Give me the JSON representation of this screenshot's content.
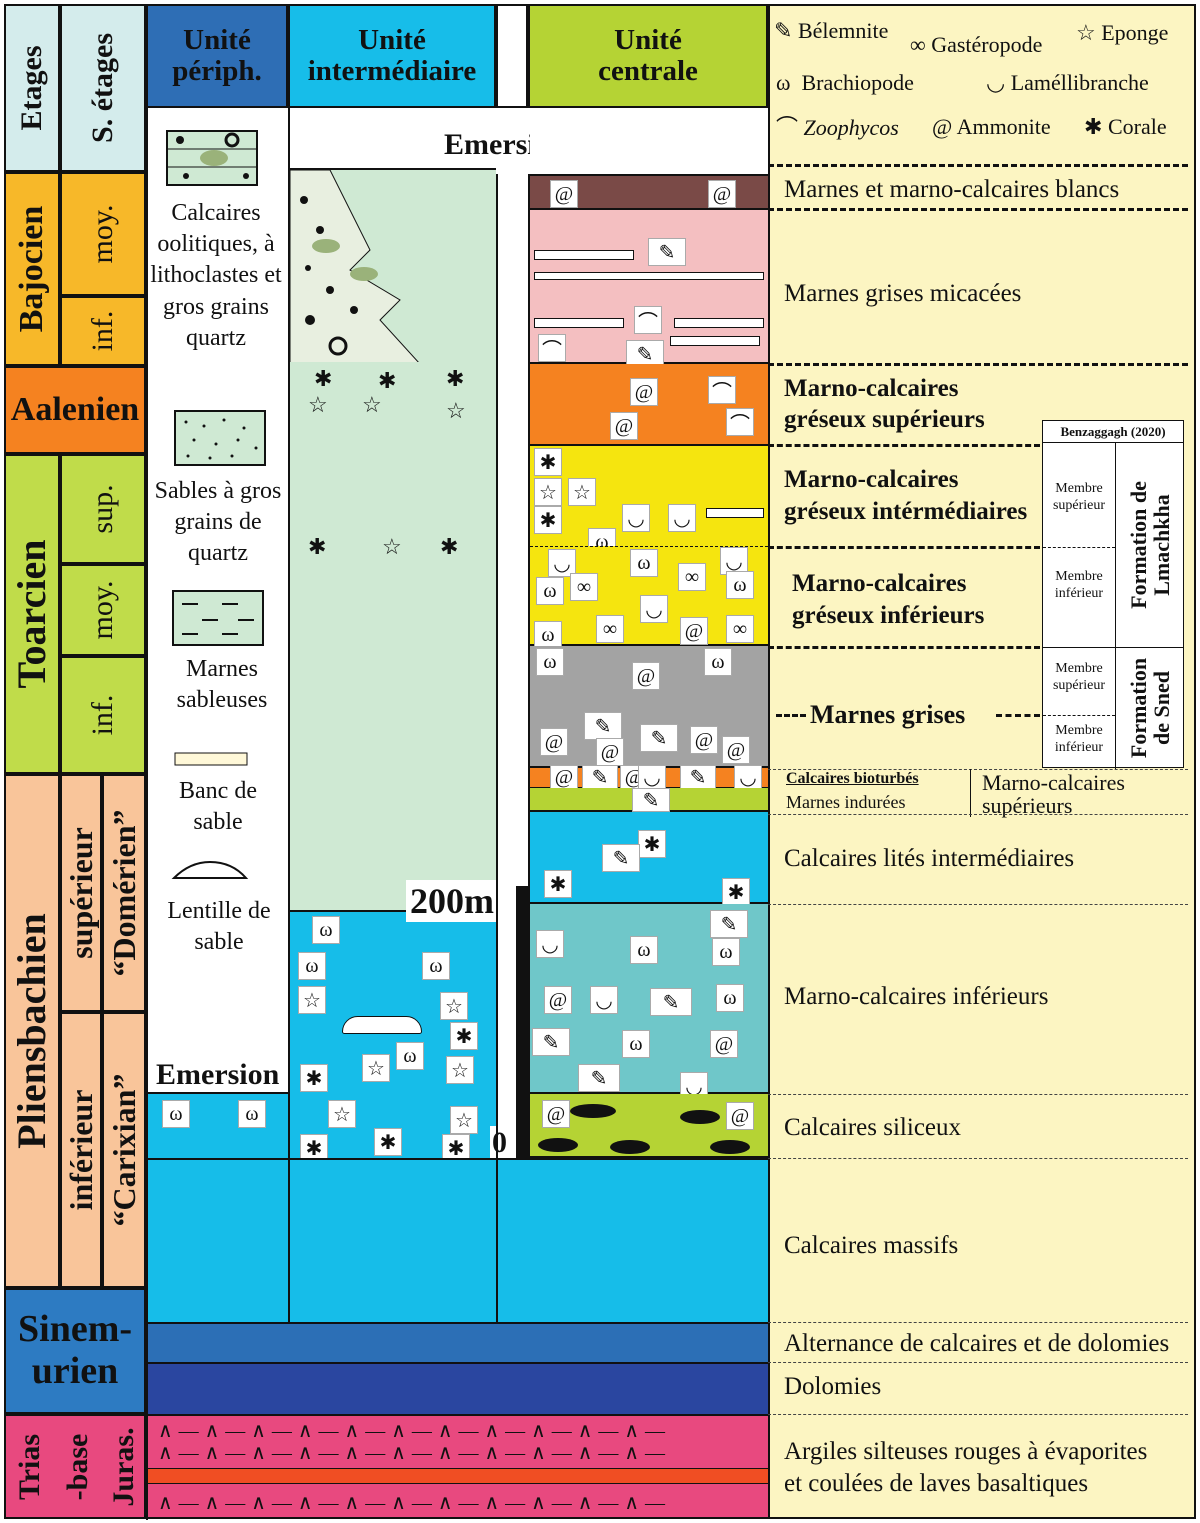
{
  "header": {
    "etages": "Etages",
    "s_etages": "S. étages",
    "unite_periph": "Unité périph.",
    "unite_intermediaire": "Unité intermédiaire",
    "unite_centrale": "Unité centrale"
  },
  "legend_fossils": {
    "belemnite": "Bélemnite",
    "gasteropode": "Gastéropode",
    "eponge": "Eponge",
    "brachiopode": "Brachiopode",
    "lamellibranche": "Laméllibranche",
    "zoophycos": "Zoophycos",
    "ammonite": "Ammonite",
    "corale": "Corale"
  },
  "stages": {
    "bajocien": "Bajocien",
    "aalenien": "Aalenien",
    "toarcien": "Toarcien",
    "pliensbachien": "Pliensbachien",
    "sinemurien": "Sinem-urien",
    "sinem_line1": "Sinem-",
    "sinem_line2": "urien",
    "trias_line1": "Trias",
    "trias_line2": "-base",
    "trias_line3": "Juras."
  },
  "substages": {
    "moy_baj": "moy.",
    "inf_baj": "inf.",
    "sup_toa": "sup.",
    "moy_toa": "moy.",
    "inf_toa": "inf.",
    "superieur": "supérieur",
    "domerien": "“Domérien”",
    "inferieur": "inférieur",
    "carixian": "“Carixian”"
  },
  "lithology_legend": {
    "calcaires_oolitiques": "Calcaires oolitiques, à lithoclastes et gros grains quartz",
    "sables": "Sables à gros grains de quartz",
    "marnes_sableuses": "Marnes sableuses",
    "banc_sable": "Banc de sable",
    "lentille_sable": "Lentille de sable"
  },
  "labels": {
    "emersion_top": "Emersion",
    "emersion_left": "Emersion",
    "scale_200": "200m",
    "scale_0": "0"
  },
  "descriptions": {
    "d1": "Marnes et marno-calcaires blancs",
    "d2": "Marnes grises micacées",
    "d3a": "Marno-calcaires",
    "d3b": "gréseux supérieurs",
    "d4a": "Marno-calcaires",
    "d4b": "gréseux intérmédiaires",
    "d5a": "Marno-calcaires",
    "d5b": "gréseux inférieurs",
    "d6": "Marnes grises",
    "d7": "Calcaires bioturbés",
    "d8": "Marnes indurées",
    "d9a": "Marno-calcaires",
    "d9b": "supérieurs",
    "d10": "Calcaires lités intermédiaires",
    "d11": "Marno-calcaires inférieurs",
    "d12": "Calcaires siliceux",
    "d13": "Calcaires massifs",
    "d14": "Alternance de calcaires et de dolomies",
    "d15": "Dolomies",
    "d16a": "Argiles silteuses rouges à évaporites",
    "d16b": "et coulées de laves basaltiques"
  },
  "formations": {
    "ref": "Benzaggagh (2020)",
    "membre_sup": "Membre supérieur",
    "membre_inf": "Membre inférieur",
    "lmachkha": "Formation de Lmachkha",
    "sned": "Formation de Sned"
  },
  "colors": {
    "etages_col": "#d4ecec",
    "bajocien": "#f7b829",
    "aalenien": "#f58220",
    "toarcien": "#c0dc4a",
    "pliensbachien": "#f9c59a",
    "sinemurien": "#2d7bc2",
    "trias": "#e8497f",
    "legend_bg": "#fcf5c2",
    "header_periph": "#2e6eb5",
    "header_cyan": "#17bde9",
    "header_lime": "#b5d334"
  }
}
